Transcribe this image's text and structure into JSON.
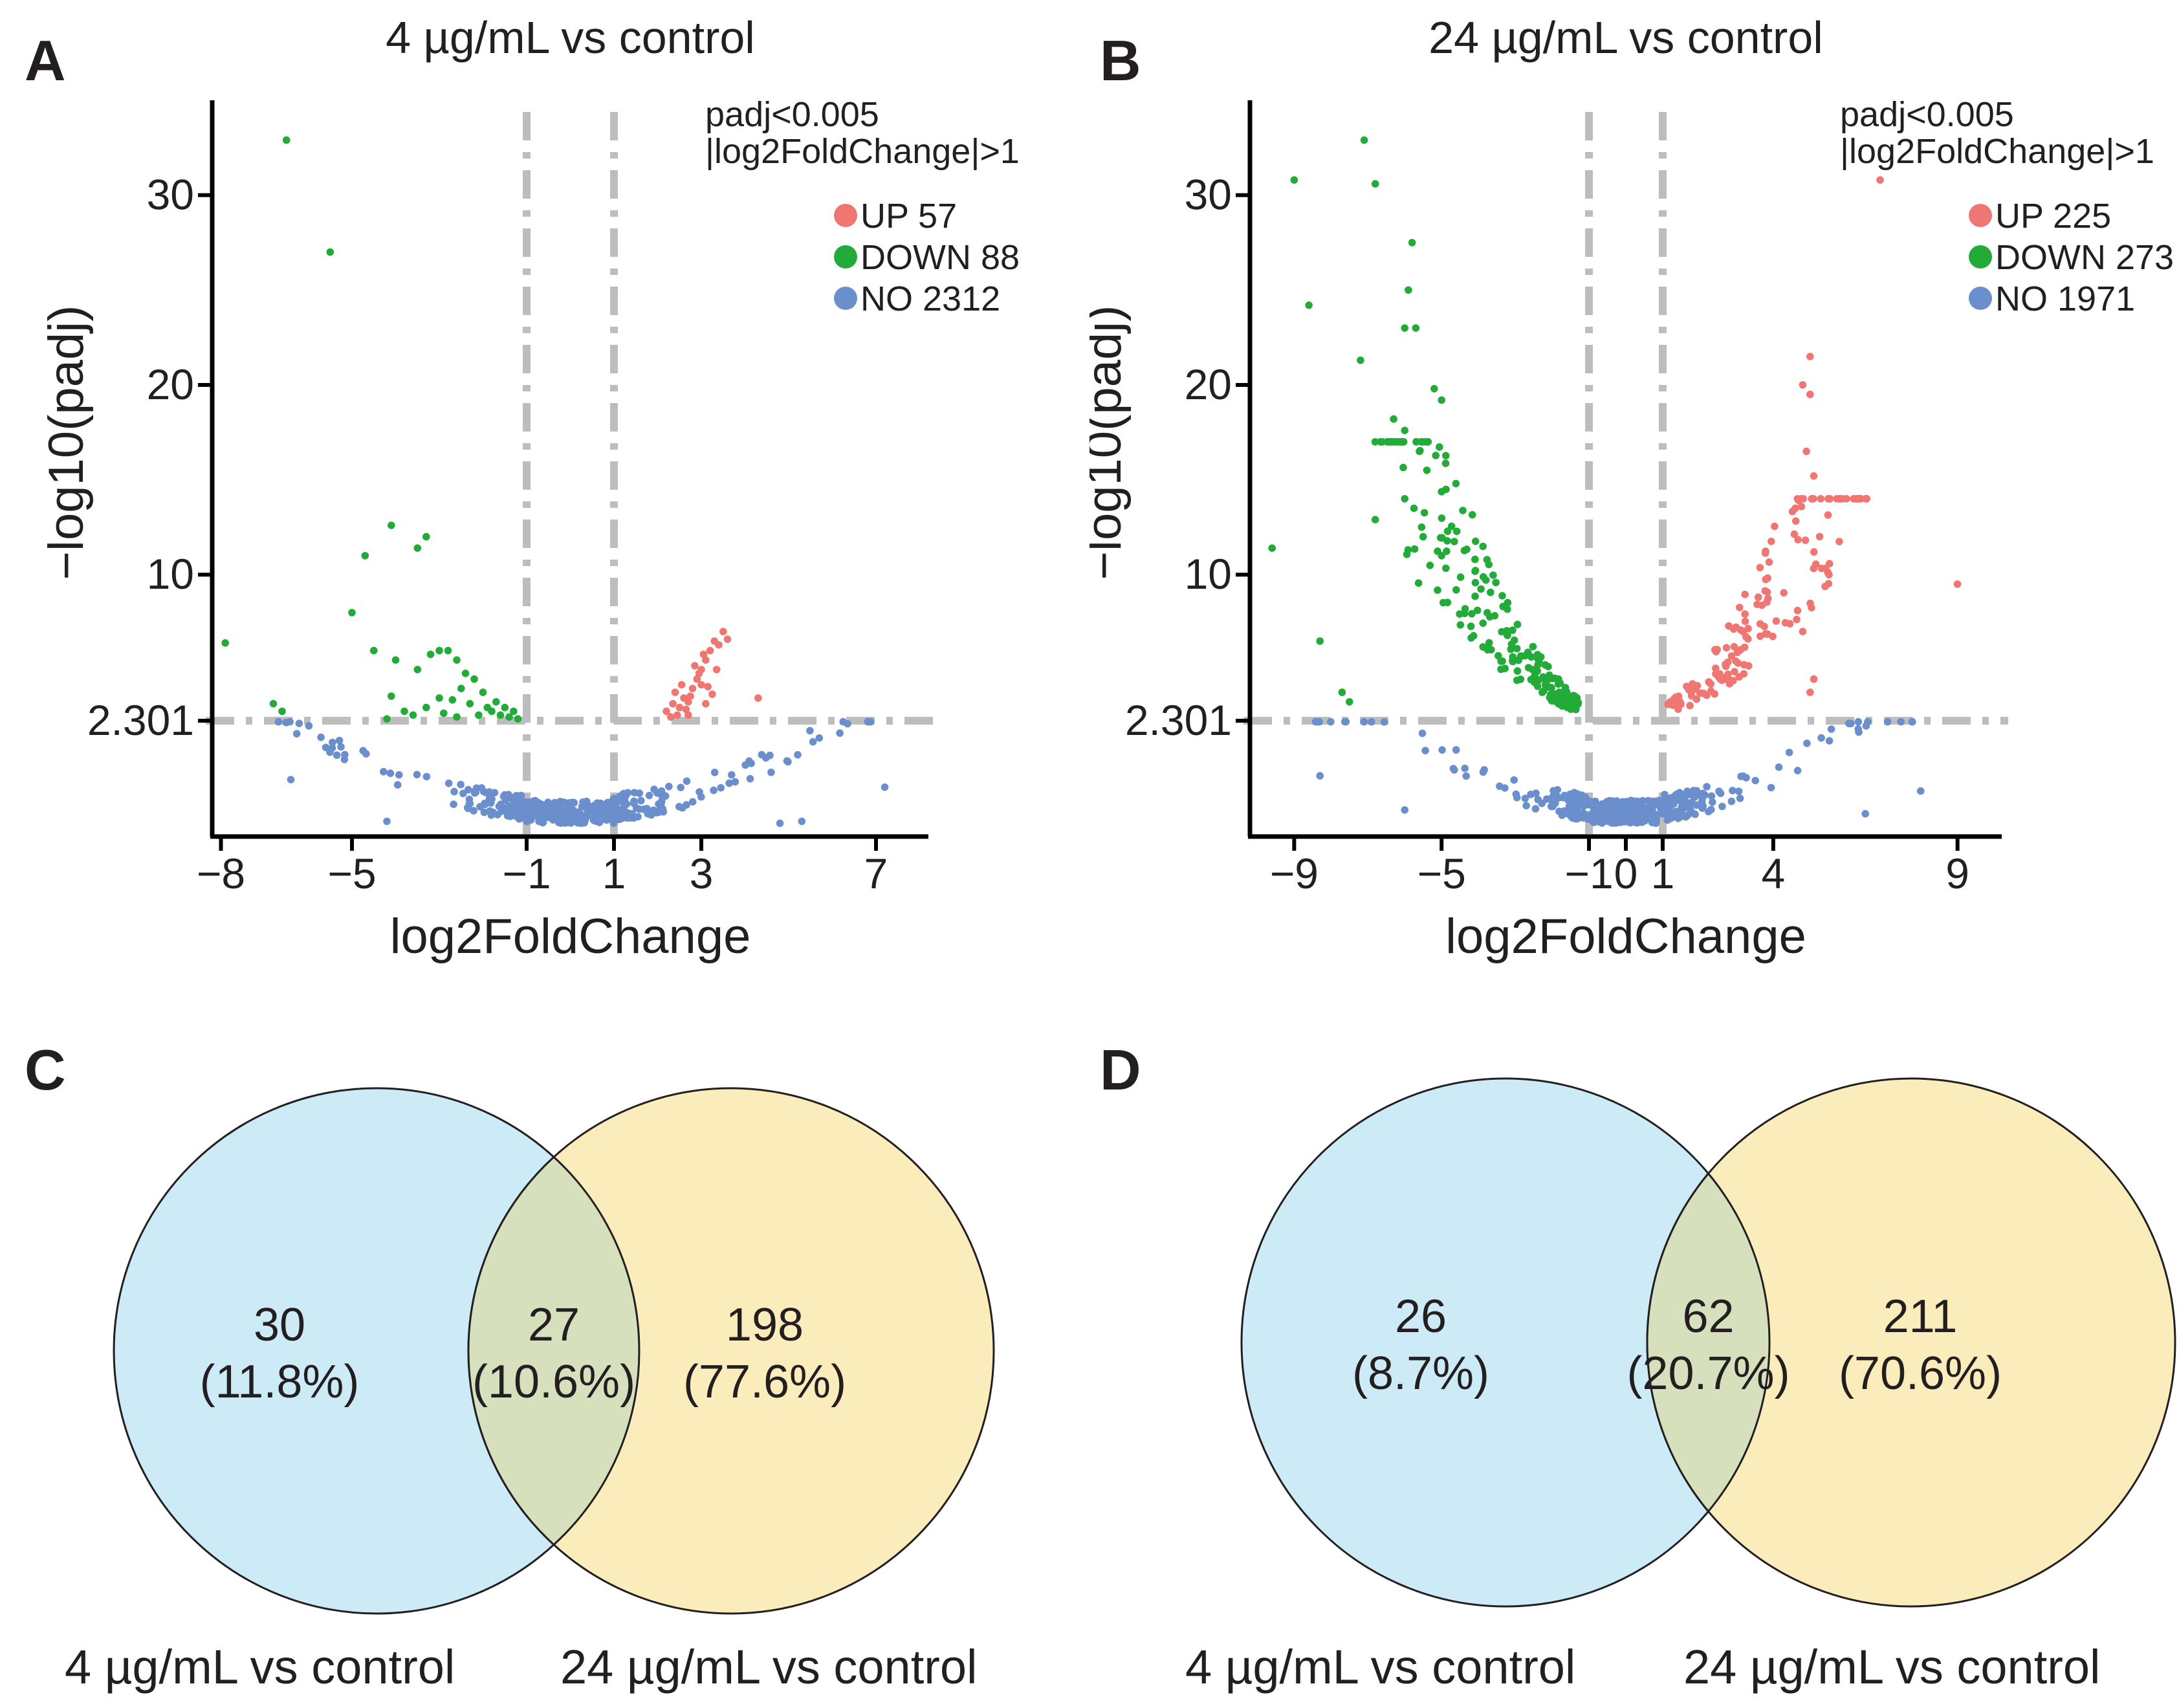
{
  "panels": {
    "A": "A",
    "B": "B",
    "C": "C",
    "D": "D"
  },
  "chart_data": [
    {
      "type": "scatter",
      "panel": "A",
      "title": "4 µg/mL vs control",
      "xlabel": "log2FoldChange",
      "ylabel": "−log10(padj)",
      "xlim": [
        -8.2,
        8.2
      ],
      "ylim": [
        -3.8,
        35
      ],
      "x_ticks": [
        -8,
        -5,
        -1,
        1,
        3,
        7
      ],
      "x_tick_labels": [
        "−8",
        "−5",
        "−1",
        "1",
        "3",
        "7"
      ],
      "y_ticks": [
        2.301,
        10,
        20,
        30
      ],
      "y_tick_labels": [
        "2.301",
        "10",
        "20",
        "30"
      ],
      "thresholds": {
        "fc": [
          -1,
          1
        ],
        "padj_line": 2.301
      },
      "annotation": [
        "padj<0.005",
        "|log2FoldChange|>1"
      ],
      "legend": [
        {
          "label": "UP 57",
          "color": "#ef7672"
        },
        {
          "label": "DOWN 88",
          "color": "#23ab3a"
        },
        {
          "label": "NO 2312",
          "color": "#6b8fcd"
        }
      ],
      "series": [
        {
          "name": "UP",
          "color": "#ef7672",
          "points": [
            [
              2.3,
              2.5
            ],
            [
              2.5,
              3.0
            ],
            [
              2.6,
              3.5
            ],
            [
              2.7,
              3.3
            ],
            [
              2.8,
              4.0
            ],
            [
              2.9,
              4.5
            ],
            [
              3.0,
              5.0
            ],
            [
              3.1,
              5.5
            ],
            [
              3.2,
              6.0
            ],
            [
              3.3,
              6.5
            ],
            [
              3.4,
              6.3
            ],
            [
              3.5,
              7.0
            ],
            [
              2.2,
              2.8
            ],
            [
              2.4,
              3.8
            ],
            [
              2.55,
              4.2
            ],
            [
              2.65,
              2.9
            ],
            [
              2.75,
              3.6
            ],
            [
              2.85,
              5.2
            ],
            [
              2.95,
              4.8
            ],
            [
              3.05,
              5.8
            ],
            [
              3.15,
              4.1
            ],
            [
              3.25,
              3.7
            ],
            [
              3.35,
              5.0
            ],
            [
              2.45,
              2.6
            ],
            [
              2.35,
              3.2
            ],
            [
              4.3,
              3.5
            ],
            [
              3.6,
              6.6
            ],
            [
              3.0,
              4.2
            ],
            [
              2.7,
              2.6
            ],
            [
              3.1,
              3.2
            ]
          ]
        },
        {
          "name": "DOWN",
          "color": "#23ab3a",
          "points": [
            [
              -6.5,
              32.9
            ],
            [
              -5.5,
              27
            ],
            [
              -4.1,
              12.6
            ],
            [
              -3.5,
              11.4
            ],
            [
              -3.3,
              12.0
            ],
            [
              -4.7,
              11.0
            ],
            [
              -5.0,
              8.0
            ],
            [
              -4.5,
              6.0
            ],
            [
              -7.9,
              6.4
            ],
            [
              -6.8,
              3.2
            ],
            [
              -6.6,
              2.8
            ],
            [
              -4.0,
              5.5
            ],
            [
              -3.5,
              5.0
            ],
            [
              -3.2,
              5.8
            ],
            [
              -3.0,
              6.0
            ],
            [
              -2.8,
              6.0
            ],
            [
              -2.6,
              5.5
            ],
            [
              -2.4,
              4.8
            ],
            [
              -2.2,
              4.5
            ],
            [
              -2.5,
              4.0
            ],
            [
              -2.7,
              3.4
            ],
            [
              -2.0,
              3.8
            ],
            [
              -1.9,
              3.0
            ],
            [
              -1.8,
              2.8
            ],
            [
              -1.6,
              2.6
            ],
            [
              -1.4,
              2.5
            ],
            [
              -1.2,
              2.4
            ],
            [
              -2.3,
              3.2
            ],
            [
              -3.0,
              3.5
            ],
            [
              -3.3,
              3.0
            ],
            [
              -3.6,
              2.6
            ],
            [
              -4.2,
              2.4
            ],
            [
              -2.9,
              2.7
            ],
            [
              -1.7,
              3.3
            ],
            [
              -2.1,
              2.6
            ],
            [
              -1.5,
              3.0
            ],
            [
              -3.8,
              2.8
            ],
            [
              -4.1,
              3.6
            ],
            [
              -2.6,
              2.5
            ],
            [
              -1.3,
              2.8
            ]
          ]
        },
        {
          "name": "NO",
          "color": "#6b8fcd",
          "generated": true,
          "count_shown": 2312
        }
      ]
    },
    {
      "type": "scatter",
      "panel": "B",
      "title": "24 µg/mL vs control",
      "xlabel": "log2FoldChange",
      "ylabel": "−log10(padj)",
      "xlim": [
        -10.2,
        10.2
      ],
      "ylim": [
        -3.8,
        35
      ],
      "x_ticks": [
        -9,
        -5,
        -1,
        0,
        1,
        4,
        9
      ],
      "x_tick_labels": [
        "−9",
        "−5",
        "−1",
        "0",
        "1",
        "4",
        "9"
      ],
      "y_ticks": [
        2.301,
        10,
        20,
        30
      ],
      "y_tick_labels": [
        "2.301",
        "10",
        "20",
        "30"
      ],
      "thresholds": {
        "fc": [
          -1,
          1
        ],
        "padj_line": 2.301
      },
      "annotation": [
        "padj<0.005",
        "|log2FoldChange|>1"
      ],
      "legend": [
        {
          "label": "UP 225",
          "color": "#ef7672"
        },
        {
          "label": "DOWN 273",
          "color": "#23ab3a"
        },
        {
          "label": "NO 1971",
          "color": "#6b8fcd"
        }
      ],
      "series": [
        {
          "name": "UP",
          "color": "#ef7672",
          "generated": true,
          "count_shown": 225
        },
        {
          "name": "DOWN",
          "color": "#23ab3a",
          "generated": true,
          "count_shown": 273
        },
        {
          "name": "NO",
          "color": "#6b8fcd",
          "generated": true,
          "count_shown": 1971
        }
      ]
    },
    {
      "type": "venn",
      "panel": "C",
      "sets": [
        "4 µg/mL vs control",
        "24 µg/mL vs control"
      ],
      "regions": [
        {
          "set": "4 µg/mL vs control only",
          "count": "30",
          "percent": "(11.8%)"
        },
        {
          "set": "both",
          "count": "27",
          "percent": "(10.6%)"
        },
        {
          "set": "24 µg/mL vs control only",
          "count": "198",
          "percent": "(77.6%)"
        }
      ],
      "colors": [
        "#cdeaf7",
        "#fbecbc",
        "#d7e0bd"
      ]
    },
    {
      "type": "venn",
      "panel": "D",
      "sets": [
        "4 µg/mL vs control",
        "24 µg/mL vs control"
      ],
      "regions": [
        {
          "set": "4 µg/mL vs control only",
          "count": "26",
          "percent": "(8.7%)"
        },
        {
          "set": "both",
          "count": "62",
          "percent": "(20.7%)"
        },
        {
          "set": "24 µg/mL vs control only",
          "count": "211",
          "percent": "(70.6%)"
        }
      ],
      "colors": [
        "#cdeaf7",
        "#fbecbc",
        "#d7e0bd"
      ]
    }
  ]
}
